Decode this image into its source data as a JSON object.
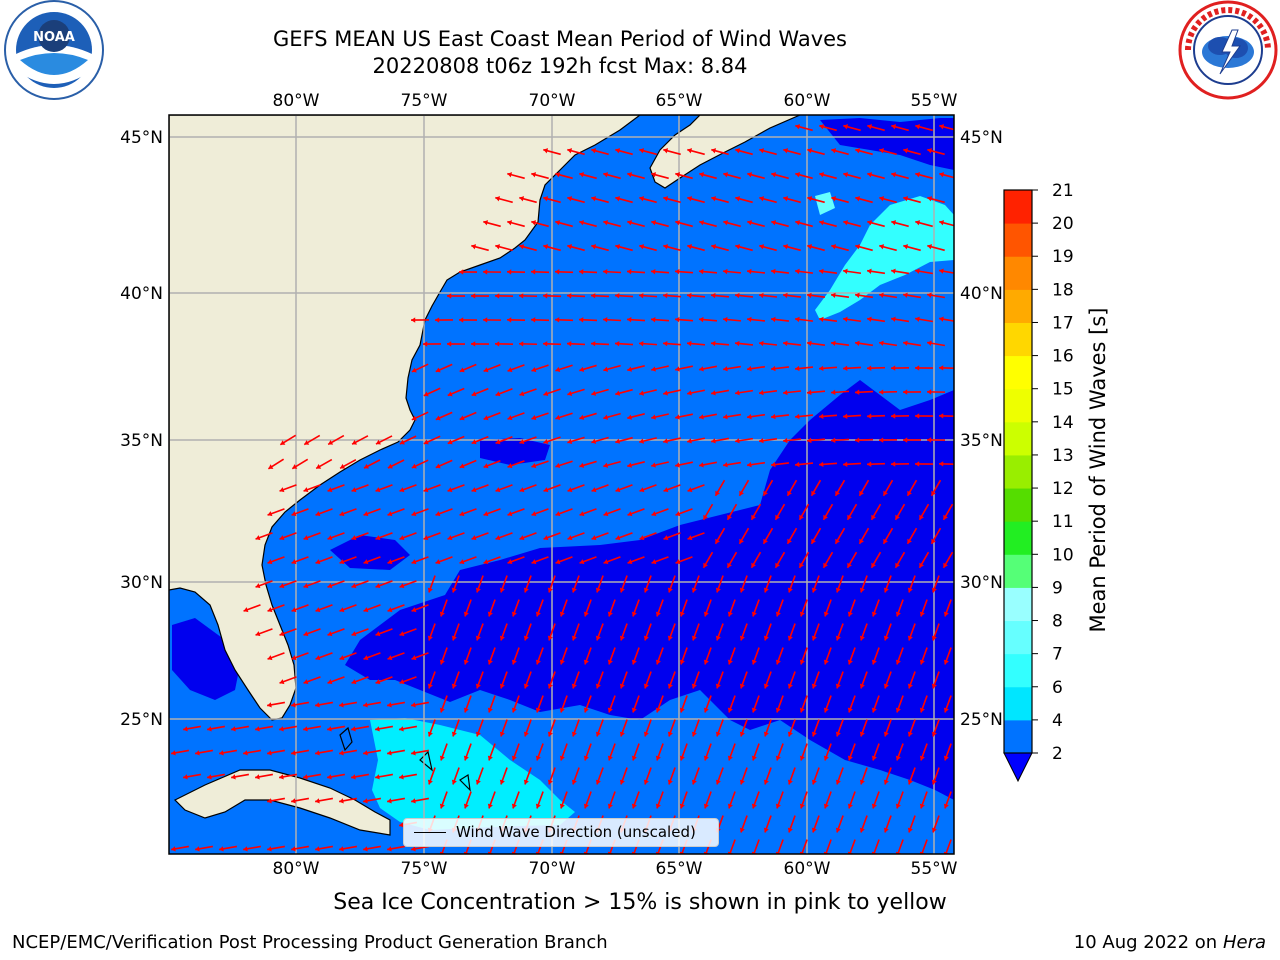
{
  "header": {
    "title": "GEFS MEAN US East Coast Mean Period of Wind Waves",
    "subtitle": "20220808 t06z 192h fcst   Max: 8.84"
  },
  "logos": {
    "left": {
      "name": "noaa-logo",
      "text": "NOAA",
      "ring_text": "NATIONAL OCEANIC AND ATMOSPHERIC ADMINISTRATION · U.S. DEPARTMENT OF COMMERCE"
    },
    "right": {
      "name": "nws-logo",
      "ring_text": "NATIONAL WEATHER SERVICE"
    }
  },
  "map": {
    "lon_labels": [
      "80°W",
      "75°W",
      "70°W",
      "65°W",
      "60°W",
      "55°W"
    ],
    "lat_labels": [
      "45°N",
      "40°N",
      "35°N",
      "30°N",
      "25°N"
    ],
    "lon_range": [
      -85,
      -54
    ],
    "lat_range": [
      20,
      46
    ],
    "legend_label": "Wind Wave Direction (unscaled)",
    "arrow_color": "#ff0000",
    "land_color": "#efedd8",
    "grid_color": "#b0b0b0"
  },
  "colorbar": {
    "label": "Mean Period of Wind Waves [s]",
    "ticks": [
      "2",
      "4",
      "6",
      "7",
      "8",
      "9",
      "10",
      "11",
      "12",
      "13",
      "14",
      "15",
      "16",
      "17",
      "18",
      "19",
      "20",
      "21"
    ],
    "colors": [
      "#0073ff",
      "#00e6ff",
      "#33ffff",
      "#66ffff",
      "#99ffff",
      "#55ff77",
      "#22ee22",
      "#55dd00",
      "#99ee00",
      "#ccff00",
      "#eeff00",
      "#ffff00",
      "#ffd700",
      "#ffaa00",
      "#ff8800",
      "#ff5500",
      "#ff2200",
      "#ff0000"
    ],
    "extend_color": "#0000ff"
  },
  "notes": {
    "sea_ice": "Sea Ice Concentration > 15% is shown in pink to yellow",
    "producer": "NCEP/EMC/Verification Post Processing Product Generation Branch",
    "date": "10 Aug 2022 on",
    "host": "Hera"
  }
}
